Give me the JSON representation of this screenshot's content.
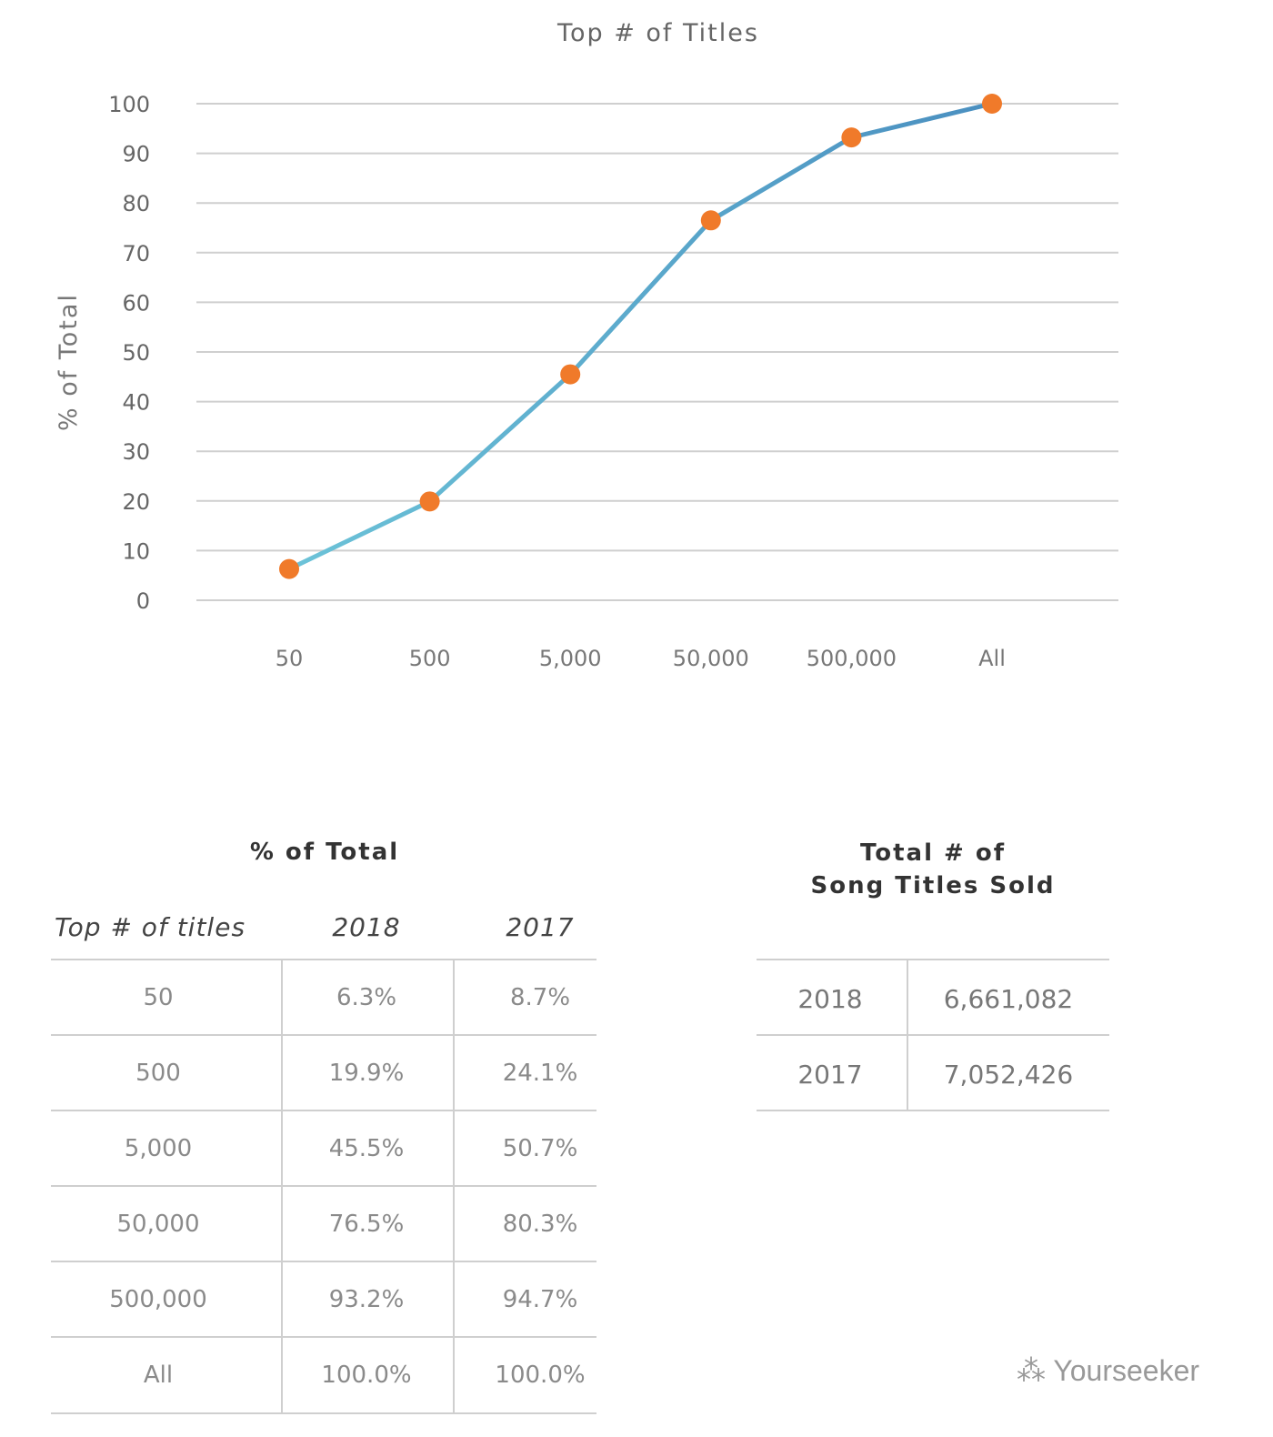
{
  "chart_data": {
    "type": "line",
    "title": "Top # of Titles",
    "xlabel": "",
    "ylabel": "% of Total",
    "categories": [
      "50",
      "500",
      "5,000",
      "50,000",
      "500,000",
      "All"
    ],
    "series": [
      {
        "values": [
          6.3,
          19.9,
          45.5,
          76.5,
          93.2,
          100.0
        ]
      }
    ],
    "ylim": [
      0,
      100
    ],
    "yticks": [
      0,
      10,
      20,
      30,
      40,
      50,
      60,
      70,
      80,
      90,
      100
    ],
    "grid": true,
    "colors": {
      "line_start": "#6cc3d8",
      "line_end": "#4a8fc0",
      "marker": "#f07a2a",
      "grid": "#cfcfcf"
    }
  },
  "pct_table": {
    "title": "% of Total",
    "headers": [
      "Top # of titles",
      "2018",
      "2017"
    ],
    "rows": [
      [
        "50",
        "6.3%",
        "8.7%"
      ],
      [
        "500",
        "19.9%",
        "24.1%"
      ],
      [
        "5,000",
        "45.5%",
        "50.7%"
      ],
      [
        "50,000",
        "76.5%",
        "80.3%"
      ],
      [
        "500,000",
        "93.2%",
        "94.7%"
      ],
      [
        "All",
        "100.0%",
        "100.0%"
      ]
    ]
  },
  "total_table": {
    "title_line1": "Total # of",
    "title_line2": "Song Titles Sold",
    "rows": [
      [
        "2018",
        "6,661,082"
      ],
      [
        "2017",
        "7,052,426"
      ]
    ]
  },
  "watermark": "Yourseeker"
}
